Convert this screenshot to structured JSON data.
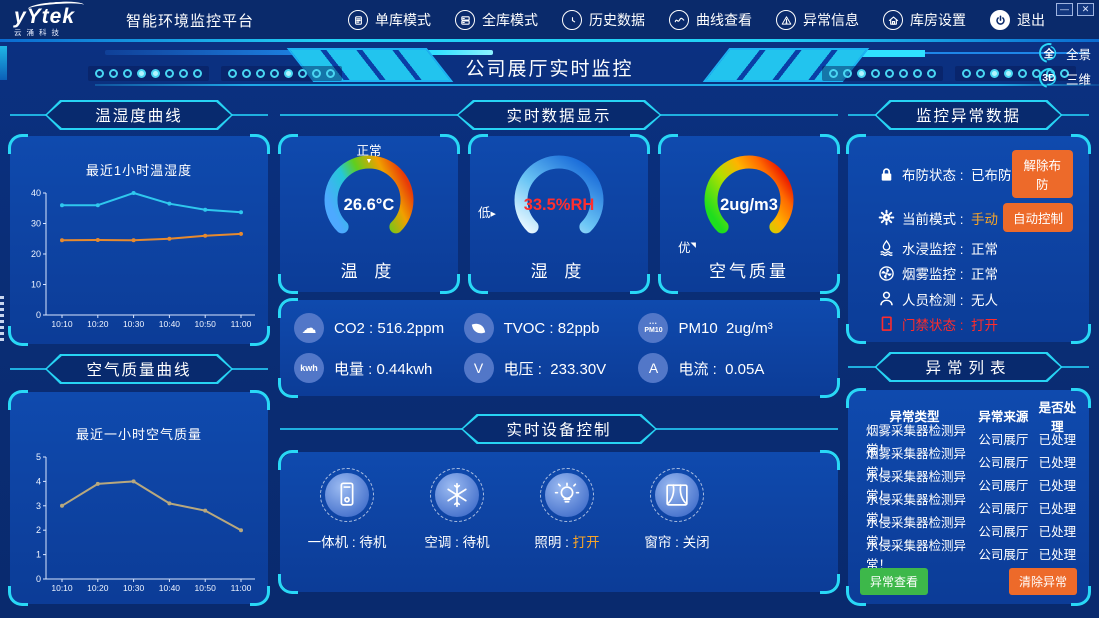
{
  "window_controls": {
    "minimize": "—",
    "close": "✕"
  },
  "topbar": {
    "logo": {
      "main": "yYtek",
      "sub": "云涌科技"
    },
    "app_title": "智能环境监控平台",
    "menu": [
      {
        "icon": "single-warehouse",
        "label": "单库模式"
      },
      {
        "icon": "all-warehouse",
        "label": "全库模式"
      },
      {
        "icon": "history",
        "label": "历史数据"
      },
      {
        "icon": "curve",
        "label": "曲线查看"
      },
      {
        "icon": "alarm",
        "label": "异常信息"
      },
      {
        "icon": "warehouse-settings",
        "label": "库房设置"
      },
      {
        "icon": "power",
        "label": "退出"
      }
    ]
  },
  "header": {
    "title": "公司展厅实时监控",
    "dot_groups_left": [
      [
        0,
        0,
        0,
        1,
        1,
        0,
        0,
        0
      ],
      [
        0,
        0,
        0,
        0,
        1,
        0,
        0,
        0
      ]
    ],
    "dot_groups_right": [
      [
        0,
        0,
        1,
        0,
        0,
        0,
        0,
        0
      ],
      [
        0,
        0,
        1,
        1,
        0,
        0,
        0,
        0
      ]
    ],
    "view_modes": [
      {
        "badge": "全",
        "label": "全景"
      },
      {
        "badge": "3D",
        "label": "三维"
      }
    ]
  },
  "sections": {
    "temp_humidity_curve": "温湿度曲线",
    "air_quality_curve": "空气质量曲线",
    "realtime_data": "实时数据显示",
    "device_control": "实时设备控制",
    "monitor_abnormal": "监控异常数据",
    "abnormal_list": "异常列表"
  },
  "chart_data": [
    {
      "type": "line",
      "title": "最近1小时温湿度",
      "x": [
        "10:10",
        "10:20",
        "10:30",
        "10:40",
        "10:50",
        "11:00"
      ],
      "series": [
        {
          "name": "湿度",
          "color": "#2fc8ee",
          "values": [
            36,
            36,
            40,
            36.5,
            34.5,
            33.7
          ]
        },
        {
          "name": "温度",
          "color": "#e78a2e",
          "values": [
            24.5,
            24.6,
            24.5,
            25.0,
            26.0,
            26.6
          ]
        }
      ],
      "ylim": [
        0,
        40
      ],
      "yticks": [
        0,
        10,
        20,
        30,
        40
      ],
      "grid": false,
      "legend": "none"
    },
    {
      "type": "line",
      "title": "最近一小时空气质量",
      "x": [
        "10:10",
        "10:20",
        "10:30",
        "10:40",
        "10:50",
        "11:00"
      ],
      "series": [
        {
          "name": "空气质量",
          "color": "#b8a87e",
          "values": [
            3,
            3.9,
            4,
            3.1,
            2.8,
            2
          ]
        }
      ],
      "ylim": [
        0,
        5
      ],
      "yticks": [
        0,
        1,
        2,
        3,
        4,
        5
      ],
      "grid": false,
      "legend": "none"
    }
  ],
  "gauges": [
    {
      "name": "温  度",
      "value": "26.6°C",
      "status": "正常",
      "status_marker": "▼",
      "value_color": "#ffffff"
    },
    {
      "name": "湿  度",
      "value": "33.5%RH",
      "status": "低",
      "status_marker": "▶",
      "value_color": "#ff2f2f"
    },
    {
      "name": "空气质量",
      "value": "2ug/m3",
      "status": "优",
      "status_marker": "◥",
      "value_color": "#ffffff"
    }
  ],
  "sensors": [
    {
      "icon": "co2-cloud",
      "label": "CO2",
      "joiner": " : ",
      "value": "516.2ppm"
    },
    {
      "icon": "tvoc-leaf",
      "label": "TVOC",
      "joiner": " : ",
      "value": "82ppb"
    },
    {
      "icon": "pm10",
      "label": "PM10",
      "joiner": "  ",
      "value": "2ug/m³"
    },
    {
      "icon": "kwh",
      "label": "电量",
      "joiner": " : ",
      "value": "0.44kwh"
    },
    {
      "icon": "voltage",
      "label": "电压",
      "joiner": " :  ",
      "value": "233.30V"
    },
    {
      "icon": "current",
      "label": "电流",
      "joiner": " :  ",
      "value": "0.05A"
    }
  ],
  "devices": [
    {
      "icon": "all-in-one",
      "label": "一体机",
      "joiner": " : ",
      "status": "待机",
      "status_color": "#ffffff"
    },
    {
      "icon": "air-conditioner",
      "label": "空调",
      "joiner": " : ",
      "status": "待机",
      "status_color": "#ffffff"
    },
    {
      "icon": "lighting",
      "label": "照明",
      "joiner": " : ",
      "status": "打开",
      "status_color": "#f5a42a"
    },
    {
      "icon": "curtain",
      "label": "窗帘",
      "joiner": " : ",
      "status": "关闭",
      "status_color": "#ffffff"
    }
  ],
  "monitor_status": {
    "sep": " :  ",
    "rows": [
      {
        "icon": "lock",
        "label": "布防状态",
        "value": "已布防",
        "value_color": "#ffffff",
        "button": "解除布防",
        "button_name": "disarm-button"
      },
      {
        "icon": "gear",
        "label": "当前模式",
        "value": "手动",
        "value_color": "#f5a42a",
        "button": "自动控制",
        "button_name": "auto-control-button"
      },
      {
        "icon": "water",
        "label": "水浸监控",
        "value": "正常",
        "value_color": "#ffffff"
      },
      {
        "icon": "smoke",
        "label": "烟雾监控",
        "value": "正常",
        "value_color": "#ffffff"
      },
      {
        "icon": "person",
        "label": "人员检测",
        "value": "无人",
        "value_color": "#ffffff"
      },
      {
        "icon": "door",
        "label": "门禁状态",
        "value": "打开",
        "value_color": "#ff2b2b",
        "row_color": "#ff2b2b"
      }
    ]
  },
  "alarm_table": {
    "headers": [
      "异常类型",
      "异常来源",
      "是否处理"
    ],
    "rows": [
      [
        "烟雾采集器检测异常！",
        "公司展厅",
        "已处理"
      ],
      [
        "烟雾采集器检测异常！",
        "公司展厅",
        "已处理"
      ],
      [
        "水侵采集器检测异常！",
        "公司展厅",
        "已处理"
      ],
      [
        "水侵采集器检测异常！",
        "公司展厅",
        "已处理"
      ],
      [
        "水侵采集器检测异常！",
        "公司展厅",
        "已处理"
      ],
      [
        "水侵采集器检测异常！",
        "公司展厅",
        "已处理"
      ]
    ],
    "buttons": {
      "view": "异常查看",
      "clear": "清除异常"
    }
  },
  "colors": {
    "accent_cyan": "#29d8f6",
    "button_orange": "#ed6a2a",
    "button_green": "#3db84a",
    "alert_red": "#ff2b2b",
    "warn_orange": "#f5a42a"
  }
}
